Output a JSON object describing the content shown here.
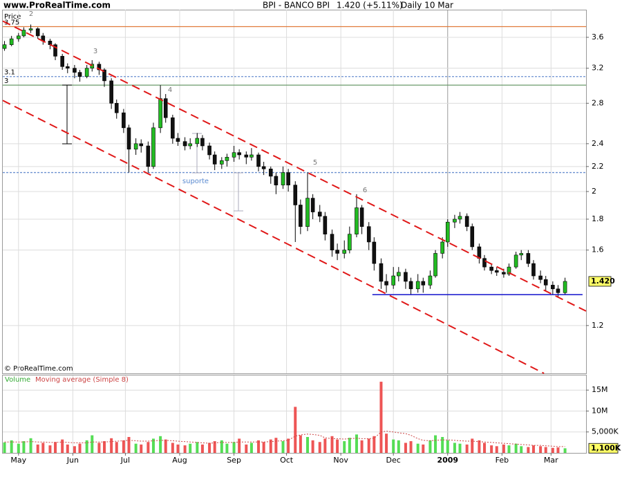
{
  "chart_data": [
    {
      "type": "candlestick",
      "source": "www.ProRealTime.com",
      "title": "BPI - BANCO BPI",
      "subtitle": "1.420 (+5.11%)",
      "period": "Daily 10 Mar",
      "y_label": "Price",
      "copyright": "© ProRealTime.com",
      "log_scale": true,
      "grid": true,
      "up_color": "#22bb22",
      "down_color": "#111111",
      "xlim": [
        -9,
        324
      ],
      "ylim": [
        1,
        4
      ],
      "xticks": [
        {
          "value": 0,
          "label": "May"
        },
        {
          "value": 31,
          "label": "Jun"
        },
        {
          "value": 61,
          "label": "Jul"
        },
        {
          "value": 92,
          "label": "Aug"
        },
        {
          "value": 123,
          "label": "Sep"
        },
        {
          "value": 153,
          "label": "Oct"
        },
        {
          "value": 184,
          "label": "Nov"
        },
        {
          "value": 214,
          "label": "Dec"
        },
        {
          "value": 245,
          "label": "2009",
          "major": true
        },
        {
          "value": 276,
          "label": "Feb"
        },
        {
          "value": 304,
          "label": "Mar"
        }
      ],
      "yticks": [
        1.2,
        1.6,
        1.8,
        2,
        2.2,
        2.4,
        2.8,
        3.2,
        3.6
      ],
      "last": {
        "value": 1.42,
        "label": "1.420"
      },
      "levels": [
        {
          "value": 3.75,
          "label": "3.75",
          "color": "#e07a3a"
        },
        {
          "value": 3.1,
          "label": "3.1",
          "color": "#6a8fd0",
          "dashed": true
        },
        {
          "value": 3,
          "label": "3",
          "color": "#6a9a6a"
        },
        {
          "value": 2.15,
          "color": "#6a8fd0",
          "dashed": true
        }
      ],
      "trendlines": [
        {
          "x": [
            -9,
            324
          ],
          "y": [
            3.83,
            1.268
          ],
          "color": "#e01818",
          "dashed": true
        },
        {
          "x": [
            -9,
            300
          ],
          "y": [
            2.83,
            1.0
          ],
          "color": "#e01818",
          "dashed": true
        },
        {
          "x": [
            202,
            322
          ],
          "y": [
            1.35,
            1.35
          ],
          "color": "#1010cc"
        }
      ],
      "annotations": [
        "2",
        "3",
        "4",
        "5",
        "6",
        "suporte"
      ],
      "x": [
        -8,
        -4,
        0,
        3,
        7,
        11,
        14,
        18,
        21,
        25,
        28,
        32,
        35,
        39,
        42,
        46,
        49,
        53,
        56,
        60,
        63,
        67,
        70,
        74,
        77,
        81,
        84,
        88,
        91,
        95,
        98,
        102,
        105,
        109,
        112,
        116,
        119,
        123,
        126,
        130,
        133,
        137,
        140,
        144,
        147,
        151,
        154,
        158,
        161,
        165,
        168,
        172,
        175,
        179,
        182,
        186,
        189,
        193,
        196,
        200,
        203,
        207,
        210,
        214,
        217,
        221,
        224,
        228,
        231,
        235,
        238,
        242,
        245,
        249,
        252,
        256,
        259,
        263,
        266,
        270,
        273,
        277,
        280,
        284,
        287,
        291,
        294,
        298,
        301,
        305,
        308,
        312
      ],
      "candles": [
        [
          3.45,
          3.55,
          3.42,
          3.5
        ],
        [
          3.5,
          3.62,
          3.48,
          3.58
        ],
        [
          3.58,
          3.66,
          3.54,
          3.62
        ],
        [
          3.62,
          3.74,
          3.6,
          3.7
        ],
        [
          3.7,
          3.78,
          3.66,
          3.72
        ],
        [
          3.72,
          3.74,
          3.58,
          3.62
        ],
        [
          3.62,
          3.66,
          3.5,
          3.55
        ],
        [
          3.55,
          3.58,
          3.44,
          3.5
        ],
        [
          3.5,
          3.52,
          3.3,
          3.35
        ],
        [
          3.35,
          3.38,
          3.18,
          3.22
        ],
        [
          3.22,
          3.26,
          3.14,
          3.2
        ],
        [
          3.2,
          3.24,
          3.08,
          3.15
        ],
        [
          3.15,
          3.18,
          3.04,
          3.1
        ],
        [
          3.1,
          3.24,
          3.08,
          3.2
        ],
        [
          3.2,
          3.3,
          3.16,
          3.25
        ],
        [
          3.25,
          3.28,
          3.12,
          3.18
        ],
        [
          3.18,
          3.2,
          2.98,
          3.05
        ],
        [
          3.05,
          3.08,
          2.74,
          2.8
        ],
        [
          2.8,
          2.84,
          2.64,
          2.7
        ],
        [
          2.7,
          2.74,
          2.5,
          2.55
        ],
        [
          2.55,
          2.58,
          2.15,
          2.35
        ],
        [
          2.35,
          2.45,
          2.3,
          2.4
        ],
        [
          2.4,
          2.44,
          2.32,
          2.38
        ],
        [
          2.38,
          2.42,
          2.15,
          2.2
        ],
        [
          2.2,
          2.6,
          2.18,
          2.55
        ],
        [
          2.55,
          3.0,
          2.5,
          2.85
        ],
        [
          2.85,
          2.9,
          2.6,
          2.65
        ],
        [
          2.65,
          2.68,
          2.4,
          2.45
        ],
        [
          2.45,
          2.5,
          2.38,
          2.42
        ],
        [
          2.42,
          2.46,
          2.34,
          2.38
        ],
        [
          2.38,
          2.45,
          2.35,
          2.4
        ],
        [
          2.4,
          2.5,
          2.37,
          2.45
        ],
        [
          2.45,
          2.48,
          2.34,
          2.38
        ],
        [
          2.38,
          2.41,
          2.26,
          2.3
        ],
        [
          2.3,
          2.33,
          2.17,
          2.22
        ],
        [
          2.22,
          2.28,
          2.18,
          2.25
        ],
        [
          2.25,
          2.31,
          2.2,
          2.28
        ],
        [
          2.28,
          2.38,
          2.24,
          2.32
        ],
        [
          2.32,
          2.35,
          2.26,
          2.3
        ],
        [
          2.3,
          2.33,
          2.22,
          2.28
        ],
        [
          2.28,
          2.36,
          2.25,
          2.3
        ],
        [
          2.3,
          2.32,
          2.16,
          2.2
        ],
        [
          2.2,
          2.24,
          2.13,
          2.18
        ],
        [
          2.18,
          2.2,
          2.06,
          2.12
        ],
        [
          2.12,
          2.15,
          1.98,
          2.05
        ],
        [
          2.05,
          2.2,
          2.02,
          2.15
        ],
        [
          2.15,
          2.18,
          2.0,
          2.05
        ],
        [
          2.05,
          2.08,
          1.65,
          1.9
        ],
        [
          1.9,
          1.94,
          1.7,
          1.75
        ],
        [
          1.75,
          2.15,
          1.72,
          1.95
        ],
        [
          1.95,
          1.98,
          1.8,
          1.85
        ],
        [
          1.85,
          1.9,
          1.78,
          1.82
        ],
        [
          1.82,
          1.85,
          1.66,
          1.7
        ],
        [
          1.7,
          1.73,
          1.56,
          1.6
        ],
        [
          1.6,
          1.64,
          1.54,
          1.58
        ],
        [
          1.58,
          1.66,
          1.55,
          1.6
        ],
        [
          1.6,
          1.75,
          1.58,
          1.7
        ],
        [
          1.7,
          1.98,
          1.68,
          1.88
        ],
        [
          1.88,
          1.9,
          1.7,
          1.75
        ],
        [
          1.75,
          1.78,
          1.6,
          1.65
        ],
        [
          1.65,
          1.68,
          1.48,
          1.52
        ],
        [
          1.52,
          1.55,
          1.38,
          1.42
        ],
        [
          1.42,
          1.46,
          1.36,
          1.4
        ],
        [
          1.4,
          1.5,
          1.38,
          1.45
        ],
        [
          1.45,
          1.5,
          1.42,
          1.47
        ],
        [
          1.47,
          1.49,
          1.38,
          1.42
        ],
        [
          1.42,
          1.44,
          1.35,
          1.38
        ],
        [
          1.38,
          1.46,
          1.36,
          1.42
        ],
        [
          1.42,
          1.44,
          1.36,
          1.4
        ],
        [
          1.4,
          1.48,
          1.38,
          1.45
        ],
        [
          1.45,
          1.6,
          1.44,
          1.58
        ],
        [
          1.58,
          1.68,
          1.55,
          1.65
        ],
        [
          1.65,
          1.8,
          1.62,
          1.78
        ],
        [
          1.78,
          1.83,
          1.74,
          1.8
        ],
        [
          1.8,
          1.85,
          1.77,
          1.82
        ],
        [
          1.82,
          1.84,
          1.72,
          1.75
        ],
        [
          1.75,
          1.77,
          1.6,
          1.62
        ],
        [
          1.62,
          1.64,
          1.52,
          1.55
        ],
        [
          1.55,
          1.57,
          1.48,
          1.5
        ],
        [
          1.5,
          1.52,
          1.46,
          1.48
        ],
        [
          1.48,
          1.5,
          1.45,
          1.47
        ],
        [
          1.47,
          1.49,
          1.44,
          1.46
        ],
        [
          1.46,
          1.52,
          1.45,
          1.5
        ],
        [
          1.5,
          1.59,
          1.49,
          1.57
        ],
        [
          1.57,
          1.6,
          1.54,
          1.58
        ],
        [
          1.58,
          1.6,
          1.5,
          1.52
        ],
        [
          1.52,
          1.54,
          1.43,
          1.45
        ],
        [
          1.45,
          1.48,
          1.41,
          1.43
        ],
        [
          1.43,
          1.45,
          1.37,
          1.4
        ],
        [
          1.4,
          1.42,
          1.35,
          1.38
        ],
        [
          1.38,
          1.4,
          1.34,
          1.36
        ],
        [
          1.36,
          1.44,
          1.35,
          1.42
        ]
      ]
    },
    {
      "type": "volume",
      "title": "Volume",
      "ma_title": "Moving average (Simple 8)",
      "title_color": "#33aa33",
      "ma_color": "#cc4444",
      "up_color": "#55dd55",
      "down_color": "#ee5555",
      "ylim": [
        0,
        18.5
      ],
      "yticks": [
        {
          "value": 5,
          "label": "5,000K"
        },
        {
          "value": 10,
          "label": "10M"
        },
        {
          "value": 15,
          "label": "15M"
        }
      ],
      "last": {
        "value": 1.1,
        "label": "1,100K"
      },
      "values": [
        2.5,
        3.0,
        2.2,
        2.8,
        3.5,
        2.0,
        2.4,
        1.8,
        2.6,
        3.2,
        2.0,
        1.6,
        2.2,
        3.0,
        4.2,
        2.4,
        2.8,
        3.5,
        2.6,
        3.0,
        3.8,
        2.2,
        2.0,
        2.6,
        3.4,
        4.0,
        3.2,
        2.4,
        2.0,
        1.8,
        2.2,
        2.6,
        2.0,
        2.4,
        2.8,
        3.0,
        2.2,
        2.6,
        3.4,
        2.0,
        2.4,
        3.0,
        2.6,
        3.2,
        3.6,
        2.8,
        3.4,
        11.0,
        4.2,
        3.8,
        3.0,
        2.6,
        3.4,
        4.0,
        3.2,
        2.8,
        3.6,
        4.4,
        3.0,
        3.4,
        4.0,
        17.0,
        4.6,
        3.2,
        3.0,
        2.4,
        2.8,
        2.2,
        2.0,
        3.0,
        4.2,
        3.8,
        3.0,
        2.4,
        2.2,
        2.0,
        3.4,
        3.0,
        2.4,
        1.8,
        1.6,
        2.0,
        1.8,
        2.2,
        1.6,
        1.4,
        1.8,
        1.6,
        1.4,
        1.2,
        1.3,
        1.1
      ],
      "ma": [
        2.6,
        2.6,
        2.6,
        2.6,
        2.7,
        2.6,
        2.6,
        2.5,
        2.5,
        2.6,
        2.5,
        2.4,
        2.4,
        2.4,
        2.6,
        2.6,
        2.6,
        2.7,
        2.8,
        2.9,
        3.0,
        2.9,
        2.8,
        2.8,
        2.9,
        3.0,
        3.0,
        2.9,
        2.8,
        2.7,
        2.6,
        2.5,
        2.4,
        2.3,
        2.4,
        2.5,
        2.5,
        2.5,
        2.6,
        2.6,
        2.6,
        2.6,
        2.6,
        2.7,
        2.8,
        2.9,
        3.0,
        4.0,
        4.3,
        4.5,
        4.4,
        4.2,
        3.6,
        3.4,
        3.4,
        3.3,
        3.4,
        3.5,
        3.4,
        3.4,
        3.5,
        5.0,
        5.2,
        5.0,
        4.8,
        4.6,
        4.2,
        3.4,
        3.0,
        2.9,
        3.0,
        3.1,
        3.1,
        3.0,
        2.9,
        2.8,
        2.8,
        2.7,
        2.6,
        2.5,
        2.4,
        2.3,
        2.2,
        2.1,
        2.0,
        1.9,
        1.8,
        1.8,
        1.7,
        1.6,
        1.5,
        1.5
      ]
    }
  ]
}
